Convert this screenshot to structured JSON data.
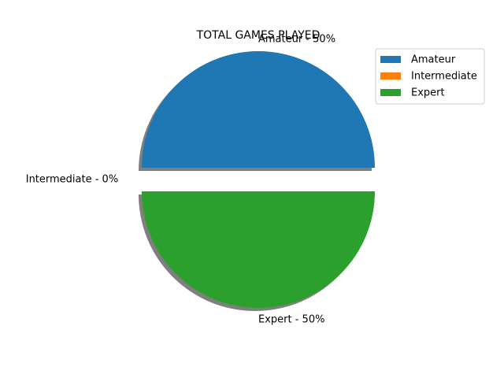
{
  "chart_data": {
    "type": "pie",
    "title": "TOTAL GAMES PLAYED",
    "slices": [
      {
        "label": "Amateur",
        "value": 50,
        "color": "#1f77b4",
        "data_label": "Amateur - 50%",
        "exploded": true
      },
      {
        "label": "Intermediate",
        "value": 0,
        "color": "#ff7f0e",
        "data_label": "Intermediate - 0%",
        "exploded": true
      },
      {
        "label": "Expert",
        "value": 50,
        "color": "#2ca02c",
        "data_label": "Expert - 50%",
        "exploded": true
      }
    ],
    "shadow": true,
    "legend": {
      "position": "top-right",
      "entries": [
        "Amateur",
        "Intermediate",
        "Expert"
      ]
    }
  }
}
